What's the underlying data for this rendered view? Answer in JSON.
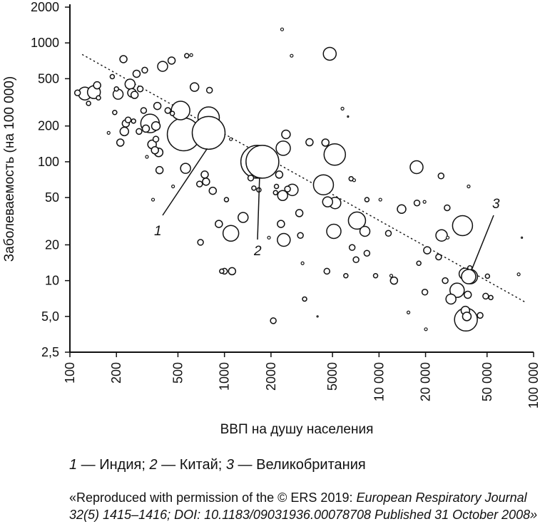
{
  "chart_data": {
    "type": "scatter",
    "xlabel": "ВВП на душу населения",
    "ylabel": "Заболеваемость (на 100 000)",
    "x_scale": "log",
    "y_scale": "log",
    "xlim": [
      100,
      100000
    ],
    "ylim": [
      2.5,
      2000
    ],
    "x_ticks": [
      {
        "value": 100,
        "label": "100"
      },
      {
        "value": 200,
        "label": "200"
      },
      {
        "value": 500,
        "label": "500"
      },
      {
        "value": 1000,
        "label": "1000"
      },
      {
        "value": 2000,
        "label": "2000"
      },
      {
        "value": 5000,
        "label": "5000"
      },
      {
        "value": 10000,
        "label": "10 000"
      },
      {
        "value": 20000,
        "label": "20 000"
      },
      {
        "value": 50000,
        "label": "50 000"
      },
      {
        "value": 100000,
        "label": "100 000"
      }
    ],
    "y_ticks": [
      {
        "value": 2.5,
        "label": "2,5"
      },
      {
        "value": 5,
        "label": "5,0"
      },
      {
        "value": 10,
        "label": "10"
      },
      {
        "value": 20,
        "label": "20"
      },
      {
        "value": 50,
        "label": "50"
      },
      {
        "value": 100,
        "label": "100"
      },
      {
        "value": 200,
        "label": "200"
      },
      {
        "value": 500,
        "label": "500"
      },
      {
        "value": 1000,
        "label": "1000"
      },
      {
        "value": 2000,
        "label": "2000"
      }
    ],
    "trend_line": {
      "style": "dotted",
      "x": [
        120,
        90000
      ],
      "y": [
        800,
        6.5
      ]
    },
    "points": [
      {
        "x": 112,
        "y": 380,
        "size": 4
      },
      {
        "x": 125,
        "y": 375,
        "size": 9
      },
      {
        "x": 132,
        "y": 310,
        "size": 3
      },
      {
        "x": 143,
        "y": 385,
        "size": 9
      },
      {
        "x": 150,
        "y": 440,
        "size": 5
      },
      {
        "x": 153,
        "y": 345,
        "size": 3
      },
      {
        "x": 178,
        "y": 175,
        "size": 2
      },
      {
        "x": 188,
        "y": 520,
        "size": 3
      },
      {
        "x": 195,
        "y": 260,
        "size": 3
      },
      {
        "x": 200,
        "y": 410,
        "size": 3
      },
      {
        "x": 205,
        "y": 370,
        "size": 7
      },
      {
        "x": 212,
        "y": 145,
        "size": 5
      },
      {
        "x": 222,
        "y": 730,
        "size": 5
      },
      {
        "x": 225,
        "y": 180,
        "size": 6
      },
      {
        "x": 230,
        "y": 210,
        "size": 5
      },
      {
        "x": 238,
        "y": 225,
        "size": 4
      },
      {
        "x": 245,
        "y": 450,
        "size": 7
      },
      {
        "x": 252,
        "y": 380,
        "size": 6
      },
      {
        "x": 258,
        "y": 220,
        "size": 3
      },
      {
        "x": 262,
        "y": 365,
        "size": 5
      },
      {
        "x": 270,
        "y": 550,
        "size": 5
      },
      {
        "x": 280,
        "y": 180,
        "size": 4
      },
      {
        "x": 285,
        "y": 410,
        "size": 4
      },
      {
        "x": 300,
        "y": 270,
        "size": 4
      },
      {
        "x": 305,
        "y": 590,
        "size": 4
      },
      {
        "x": 310,
        "y": 190,
        "size": 5
      },
      {
        "x": 315,
        "y": 110,
        "size": 2
      },
      {
        "x": 330,
        "y": 210,
        "size": 13
      },
      {
        "x": 340,
        "y": 140,
        "size": 6
      },
      {
        "x": 355,
        "y": 125,
        "size": 5
      },
      {
        "x": 360,
        "y": 200,
        "size": 6
      },
      {
        "x": 360,
        "y": 155,
        "size": 4
      },
      {
        "x": 368,
        "y": 295,
        "size": 5
      },
      {
        "x": 375,
        "y": 120,
        "size": 6
      },
      {
        "x": 380,
        "y": 85,
        "size": 5
      },
      {
        "x": 345,
        "y": 48,
        "size": 2
      },
      {
        "x": 398,
        "y": 635,
        "size": 7
      },
      {
        "x": 430,
        "y": 270,
        "size": 4
      },
      {
        "x": 455,
        "y": 710,
        "size": 5
      },
      {
        "x": 460,
        "y": 255,
        "size": 3
      },
      {
        "x": 465,
        "y": 62,
        "size": 2
      },
      {
        "x": 520,
        "y": 270,
        "size": 13
      },
      {
        "x": 545,
        "y": 170,
        "size": 23
      },
      {
        "x": 560,
        "y": 88,
        "size": 7
      },
      {
        "x": 570,
        "y": 780,
        "size": 3
      },
      {
        "x": 610,
        "y": 790,
        "size": 2
      },
      {
        "x": 640,
        "y": 425,
        "size": 6
      },
      {
        "x": 690,
        "y": 205,
        "size": 5
      },
      {
        "x": 690,
        "y": 65,
        "size": 4
      },
      {
        "x": 700,
        "y": 21,
        "size": 4
      },
      {
        "x": 710,
        "y": 185,
        "size": 5
      },
      {
        "x": 745,
        "y": 78,
        "size": 5
      },
      {
        "x": 760,
        "y": 68,
        "size": 5
      },
      {
        "x": 790,
        "y": 235,
        "size": 15
      },
      {
        "x": 800,
        "y": 400,
        "size": 4
      },
      {
        "x": 840,
        "y": 57,
        "size": 5
      },
      {
        "x": 920,
        "y": 30,
        "size": 5
      },
      {
        "x": 960,
        "y": 12,
        "size": 3
      },
      {
        "x": 1000,
        "y": 12,
        "size": 4
      },
      {
        "x": 1030,
        "y": 48,
        "size": 3
      },
      {
        "x": 1120,
        "y": 12,
        "size": 5
      },
      {
        "x": 1100,
        "y": 155,
        "size": 2
      },
      {
        "x": 1100,
        "y": 25,
        "size": 11
      },
      {
        "x": 1320,
        "y": 34,
        "size": 7
      },
      {
        "x": 1630,
        "y": 100,
        "size": 23
      },
      {
        "x": 1480,
        "y": 73,
        "size": 4
      },
      {
        "x": 1550,
        "y": 60,
        "size": 3
      },
      {
        "x": 1670,
        "y": 58,
        "size": 3
      },
      {
        "x": 1940,
        "y": 23,
        "size": 2
      },
      {
        "x": 2070,
        "y": 4.6,
        "size": 4
      },
      {
        "x": 2140,
        "y": 55,
        "size": 3
      },
      {
        "x": 2170,
        "y": 62,
        "size": 3
      },
      {
        "x": 2260,
        "y": 78,
        "size": 5
      },
      {
        "x": 2320,
        "y": 30,
        "size": 5
      },
      {
        "x": 2360,
        "y": 1300,
        "size": 2
      },
      {
        "x": 2380,
        "y": 52,
        "size": 7
      },
      {
        "x": 2400,
        "y": 130,
        "size": 10
      },
      {
        "x": 2420,
        "y": 22,
        "size": 9
      },
      {
        "x": 2500,
        "y": 170,
        "size": 6
      },
      {
        "x": 2560,
        "y": 59,
        "size": 4
      },
      {
        "x": 2720,
        "y": 780,
        "size": 2
      },
      {
        "x": 2750,
        "y": 58,
        "size": 8
      },
      {
        "x": 3050,
        "y": 37,
        "size": 5
      },
      {
        "x": 3100,
        "y": 24,
        "size": 4
      },
      {
        "x": 3200,
        "y": 14,
        "size": 2
      },
      {
        "x": 3300,
        "y": 7.0,
        "size": 3
      },
      {
        "x": 3550,
        "y": 146,
        "size": 5
      },
      {
        "x": 4000,
        "y": 5,
        "size": 1
      },
      {
        "x": 4370,
        "y": 64,
        "size": 14
      },
      {
        "x": 4500,
        "y": 145,
        "size": 5
      },
      {
        "x": 4600,
        "y": 12,
        "size": 4
      },
      {
        "x": 4650,
        "y": 46,
        "size": 7
      },
      {
        "x": 4800,
        "y": 810,
        "size": 9
      },
      {
        "x": 5100,
        "y": 26,
        "size": 10
      },
      {
        "x": 5200,
        "y": 45,
        "size": 8
      },
      {
        "x": 5170,
        "y": 115,
        "size": 15
      },
      {
        "x": 5800,
        "y": 280,
        "size": 2
      },
      {
        "x": 6100,
        "y": 11,
        "size": 3
      },
      {
        "x": 6300,
        "y": 240,
        "size": 1
      },
      {
        "x": 6600,
        "y": 72,
        "size": 3
      },
      {
        "x": 6700,
        "y": 19,
        "size": 4
      },
      {
        "x": 6900,
        "y": 70,
        "size": 2
      },
      {
        "x": 7200,
        "y": 32,
        "size": 12
      },
      {
        "x": 7100,
        "y": 15,
        "size": 4
      },
      {
        "x": 8100,
        "y": 26,
        "size": 7
      },
      {
        "x": 8350,
        "y": 17,
        "size": 4
      },
      {
        "x": 8350,
        "y": 48,
        "size": 3
      },
      {
        "x": 9500,
        "y": 11,
        "size": 3
      },
      {
        "x": 10200,
        "y": 48,
        "size": 2
      },
      {
        "x": 11500,
        "y": 25,
        "size": 4
      },
      {
        "x": 12000,
        "y": 11,
        "size": 2
      },
      {
        "x": 12500,
        "y": 10,
        "size": 5
      },
      {
        "x": 14000,
        "y": 40,
        "size": 6
      },
      {
        "x": 15500,
        "y": 5.4,
        "size": 2
      },
      {
        "x": 17500,
        "y": 90,
        "size": 9
      },
      {
        "x": 17600,
        "y": 45,
        "size": 4
      },
      {
        "x": 18100,
        "y": 14,
        "size": 3
      },
      {
        "x": 19700,
        "y": 46,
        "size": 2
      },
      {
        "x": 19800,
        "y": 8,
        "size": 4
      },
      {
        "x": 20100,
        "y": 3.9,
        "size": 2
      },
      {
        "x": 20500,
        "y": 18,
        "size": 5
      },
      {
        "x": 24300,
        "y": 15.8,
        "size": 4
      },
      {
        "x": 25200,
        "y": 76,
        "size": 4
      },
      {
        "x": 25400,
        "y": 24,
        "size": 8
      },
      {
        "x": 26800,
        "y": 10,
        "size": 4
      },
      {
        "x": 27600,
        "y": 41,
        "size": 4
      },
      {
        "x": 27800,
        "y": 23,
        "size": 2
      },
      {
        "x": 29200,
        "y": 7.0,
        "size": 7
      },
      {
        "x": 32000,
        "y": 8.3,
        "size": 10
      },
      {
        "x": 34700,
        "y": 29,
        "size": 14
      },
      {
        "x": 36200,
        "y": 5.6,
        "size": 6
      },
      {
        "x": 35900,
        "y": 11.4,
        "size": 8
      },
      {
        "x": 36500,
        "y": 4.7,
        "size": 16
      },
      {
        "x": 37000,
        "y": 5.0,
        "size": 6
      },
      {
        "x": 37500,
        "y": 7.6,
        "size": 5
      },
      {
        "x": 38700,
        "y": 12.8,
        "size": 3
      },
      {
        "x": 38000,
        "y": 62,
        "size": 2
      },
      {
        "x": 39000,
        "y": 10.8,
        "size": 10
      },
      {
        "x": 45100,
        "y": 5.1,
        "size": 4
      },
      {
        "x": 50300,
        "y": 10.9,
        "size": 3
      },
      {
        "x": 49000,
        "y": 7.4,
        "size": 4
      },
      {
        "x": 52900,
        "y": 7.2,
        "size": 3
      },
      {
        "x": 80100,
        "y": 11.3,
        "size": 2
      },
      {
        "x": 84000,
        "y": 23,
        "size": 1
      }
    ],
    "annotations": [
      {
        "label": "1",
        "country": "Индия",
        "x": 790,
        "y": 175,
        "size": 23
      },
      {
        "label": "2",
        "country": "Китай",
        "x": 1760,
        "y": 100,
        "size": 23
      },
      {
        "label": "3",
        "country": "Великобритания",
        "x": 38000,
        "y": 10.8,
        "size": 10
      }
    ]
  },
  "legend": {
    "item1_num": "1",
    "item1_text": " — Индия; ",
    "item2_num": "2",
    "item2_text": " — Китай; ",
    "item3_num": "3",
    "item3_text": " — Великобритания"
  },
  "source": {
    "prefix": "«Reproduced with permission of the © ERS 2019: ",
    "journal": "European Respiratory Journal 32(5) 1415–1416; DOI: 10.1183/09031936.00078708 Published 31 October 2008»"
  }
}
